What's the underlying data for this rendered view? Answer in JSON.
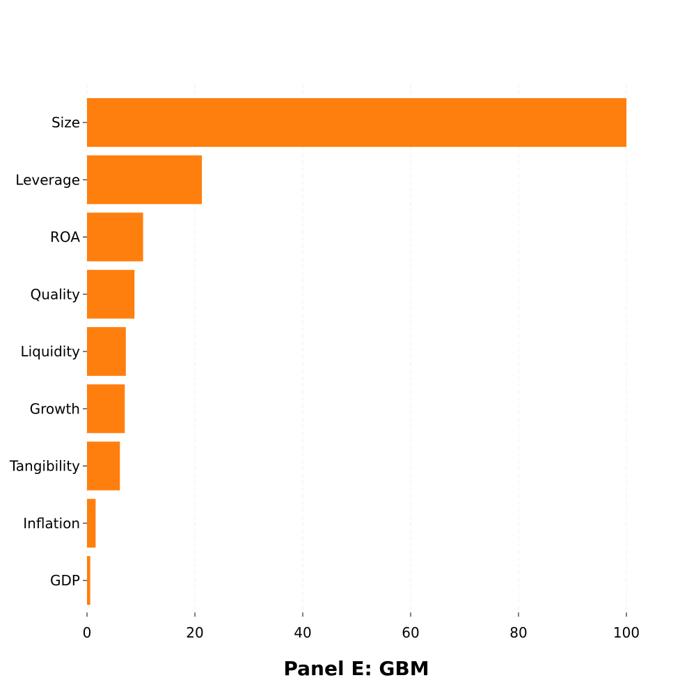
{
  "chart_data": {
    "type": "bar",
    "orientation": "horizontal",
    "title": "Panel E: GBM",
    "categories": [
      "Size",
      "Leverage",
      "ROA",
      "Quality",
      "Liquidity",
      "Growth",
      "Tangibility",
      "Inflation",
      "GDP"
    ],
    "values": [
      100,
      21.3,
      10.4,
      8.8,
      7.2,
      7.0,
      6.1,
      1.6,
      0.6
    ],
    "xlim": [
      0,
      100
    ],
    "xticks": [
      0,
      20,
      40,
      60,
      80,
      100
    ],
    "xlabel": "",
    "ylabel": "",
    "grid": "vertical dashed",
    "bar_color": "#ff7f0e"
  }
}
